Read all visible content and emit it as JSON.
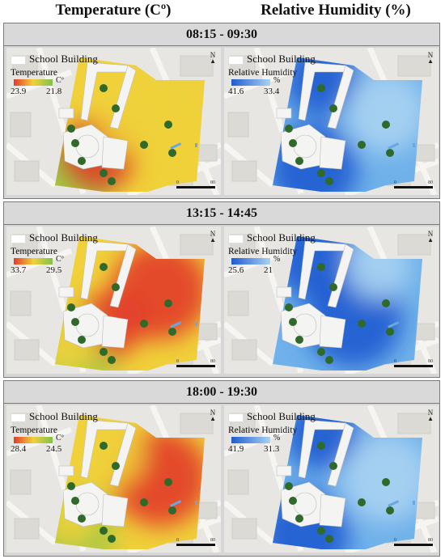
{
  "headers": {
    "temperature": "Temperature (Cº)",
    "humidity": "Relative Humidity (%)"
  },
  "legend": {
    "school_building": "School Building",
    "temperature_title": "Temperature",
    "humidity_title": "Relative Humidity",
    "temperature_unit": "Cº",
    "humidity_unit": "%",
    "scale_start": "0",
    "scale_end": "80",
    "north": "N"
  },
  "periods": [
    {
      "label": "08:15 - 09:30",
      "temp_max": "23.9",
      "temp_min": "21.8",
      "rh_max": "41.6",
      "rh_min": "33.4"
    },
    {
      "label": "13:15 - 14:45",
      "temp_max": "33.7",
      "temp_min": "29.5",
      "rh_max": "25.6",
      "rh_min": "21"
    },
    {
      "label": "18:00 - 19:30",
      "temp_max": "28.4",
      "temp_min": "24.5",
      "rh_max": "41.9",
      "rh_min": "31.3"
    }
  ],
  "colors": {
    "temp_hot": "#e23b2a",
    "temp_mid": "#f0d13a",
    "temp_cool": "#7ec24a",
    "rh_high": "#1f5bd0",
    "rh_low": "#a9d3f2",
    "building": "#f4f4f2",
    "tree": "#2f6a2a",
    "ground": "#e8e6e2"
  }
}
